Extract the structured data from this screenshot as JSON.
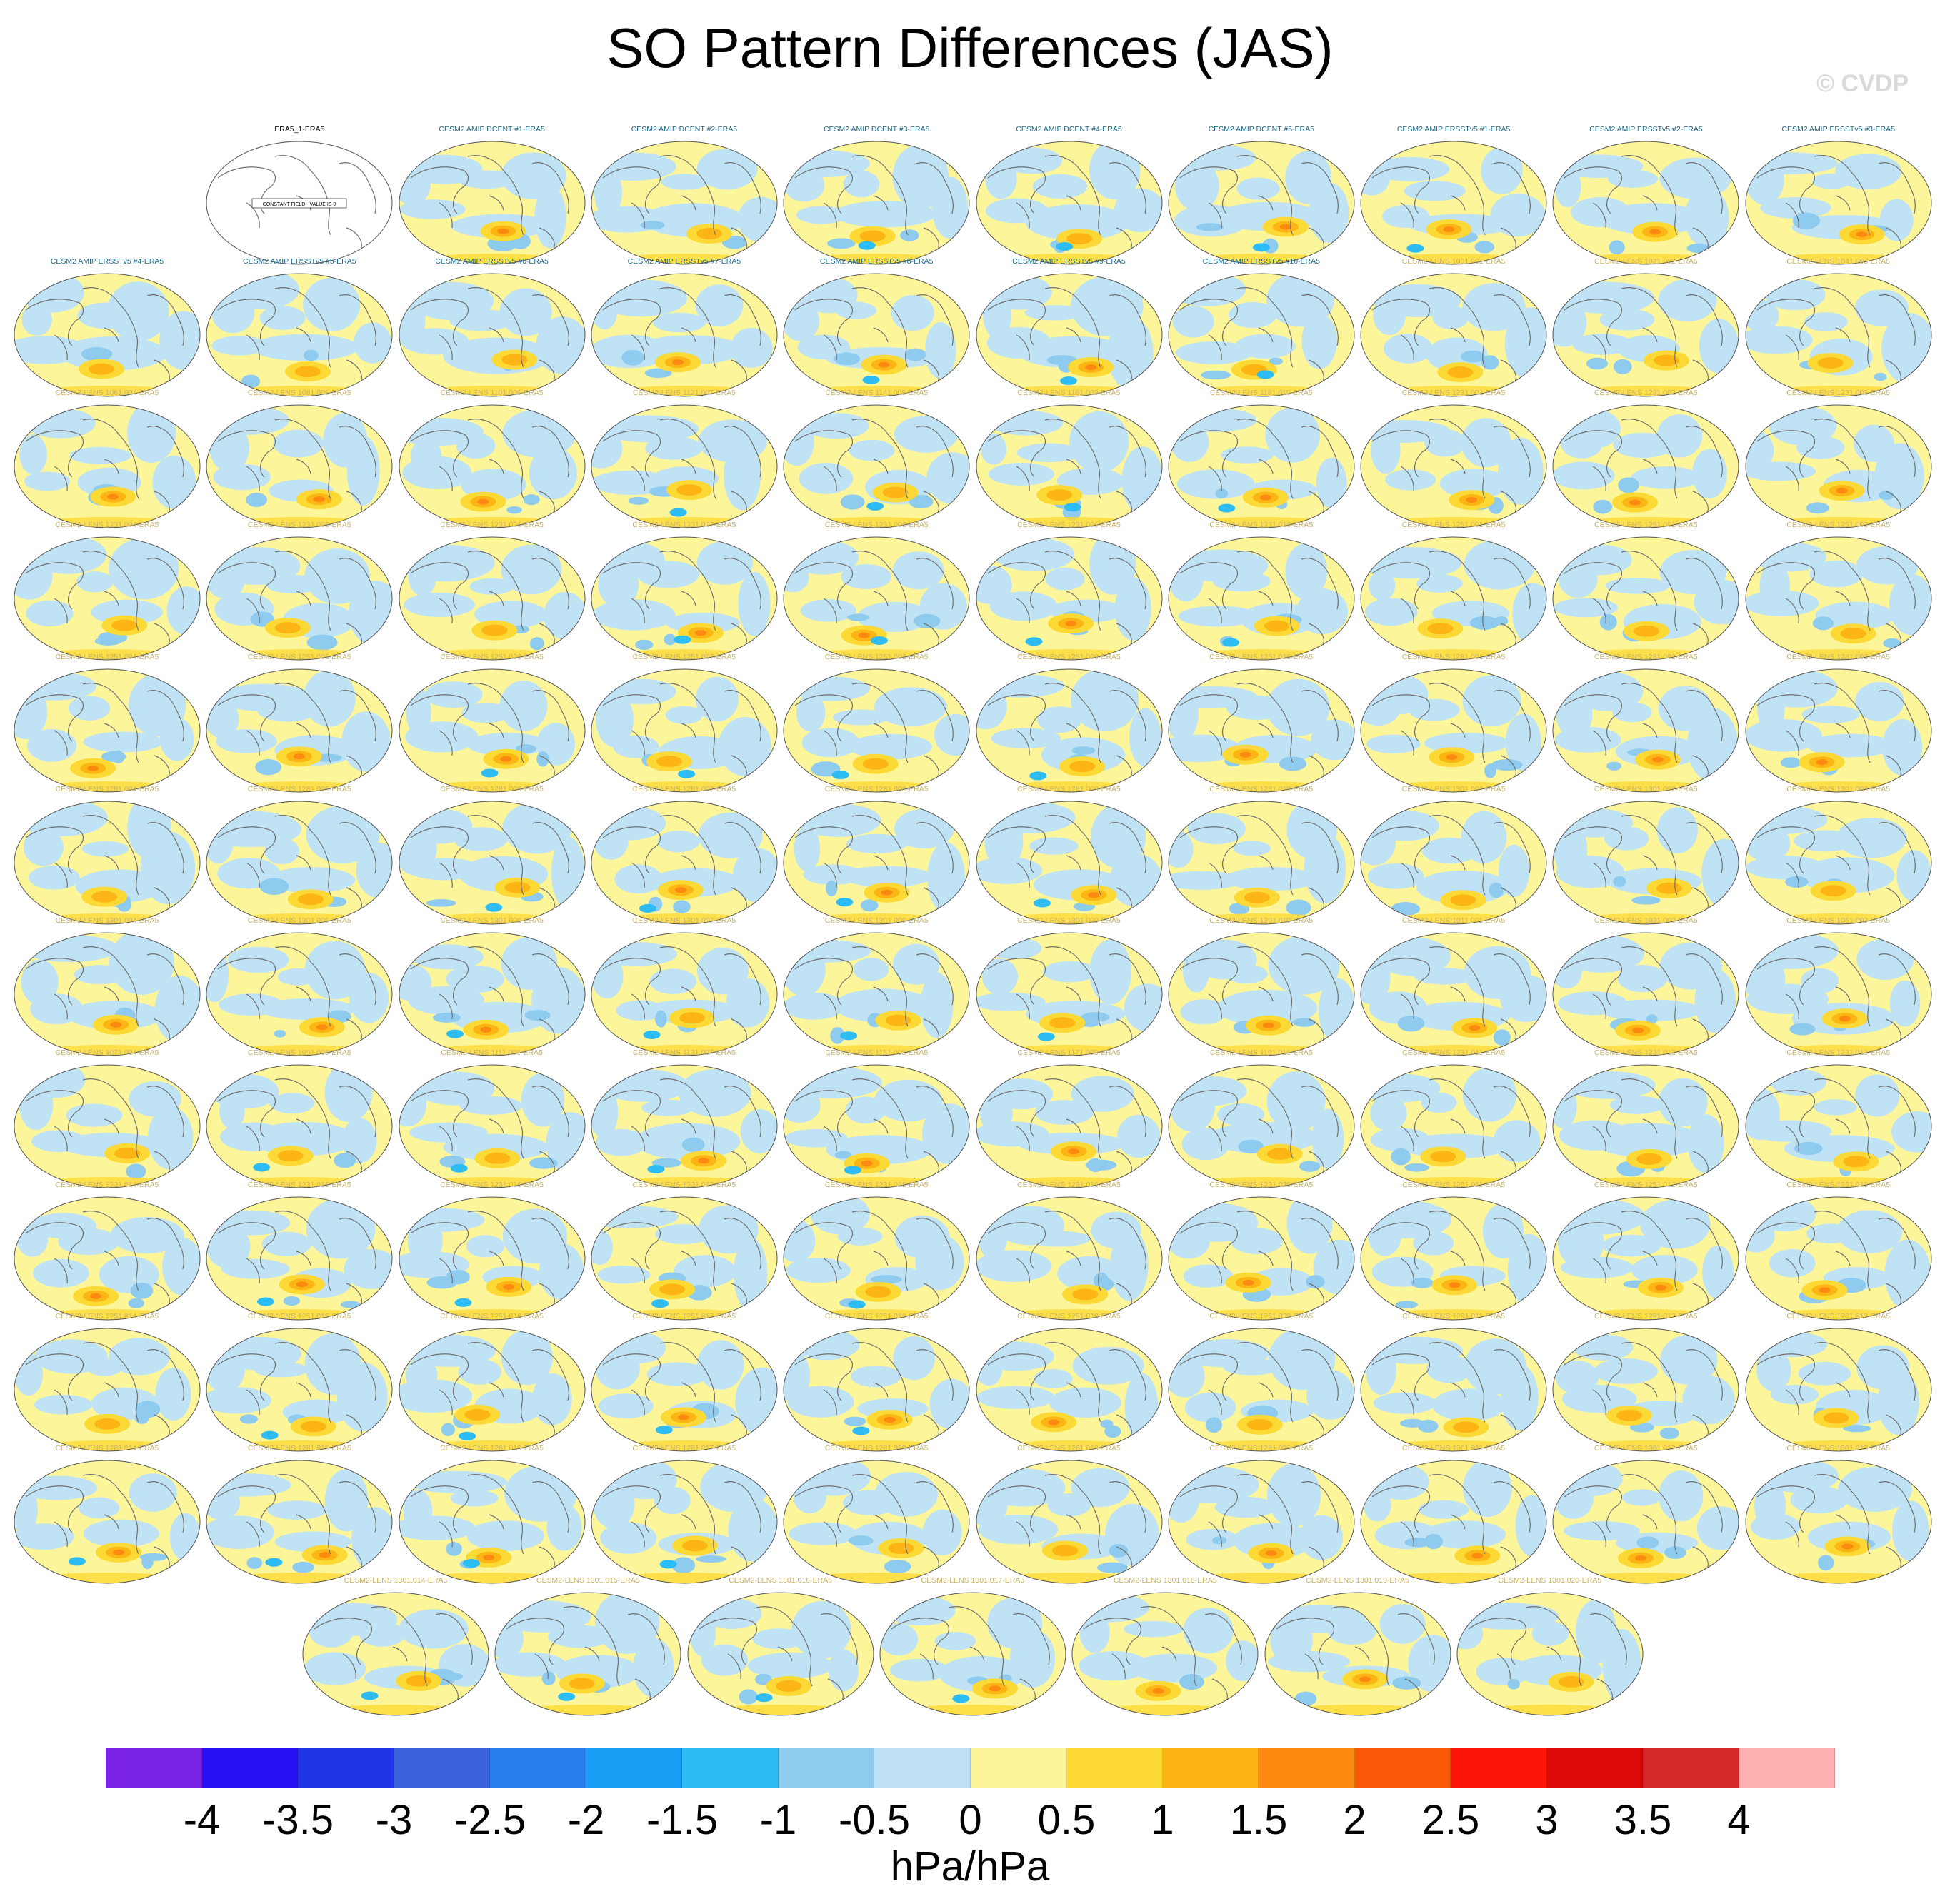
{
  "title": "SO Pattern Differences (JAS)",
  "watermark": "© CVDP",
  "chart_data": {
    "type": "map-panel-grid",
    "title": "SO Pattern Differences (JAS)",
    "colorbar": {
      "ticks": [
        "-4",
        "-3.5",
        "-3",
        "-2.5",
        "-2",
        "-1.5",
        "-1",
        "-0.5",
        "0",
        "0.5",
        "1",
        "1.5",
        "2",
        "2.5",
        "3",
        "3.5",
        "4"
      ],
      "colors": [
        "#7a22e8",
        "#2a10f5",
        "#1f35e6",
        "#3a62db",
        "#2a7eee",
        "#179ff5",
        "#2ebcf5",
        "#8ecbef",
        "#bfe3f5",
        "#fdf59a",
        "#fcd935",
        "#fcb514",
        "#fd8a10",
        "#fa5a08",
        "#fa1508",
        "#dd0808",
        "#d22828",
        "#ffb0b0"
      ],
      "unit_label": "hPa/hPa"
    },
    "panels": [
      {
        "title": "ERA5_1-ERA5",
        "constant_field_note": "CONSTANT FIELD - VALUE IS 0"
      },
      {
        "title": "CESM2 AMIP DCENT #1-ERA5"
      },
      {
        "title": "CESM2 AMIP DCENT #2-ERA5"
      },
      {
        "title": "CESM2 AMIP DCENT #3-ERA5"
      },
      {
        "title": "CESM2 AMIP DCENT #4-ERA5"
      },
      {
        "title": "CESM2 AMIP DCENT #5-ERA5"
      },
      {
        "title": "CESM2 AMIP ERSSTv5 #1-ERA5"
      },
      {
        "title": "CESM2 AMIP ERSSTv5 #2-ERA5"
      },
      {
        "title": "CESM2 AMIP ERSSTv5 #3-ERA5"
      },
      {
        "title": "CESM2 AMIP ERSSTv5 #4-ERA5"
      },
      {
        "title": "CESM2 AMIP ERSSTv5 #5-ERA5"
      },
      {
        "title": "CESM2 AMIP ERSSTv5 #6-ERA5"
      },
      {
        "title": "CESM2 AMIP ERSSTv5 #7-ERA5"
      },
      {
        "title": "CESM2 AMIP ERSSTv5 #8-ERA5"
      },
      {
        "title": "CESM2 AMIP ERSSTv5 #9-ERA5"
      },
      {
        "title": "CESM2 AMIP ERSSTv5 #10-ERA5"
      },
      {
        "title": "CESM2-LENS 1001.001-ERA5"
      },
      {
        "title": "CESM2-LENS 1021.002-ERA5"
      },
      {
        "title": "CESM2-LENS 1041.003-ERA5"
      },
      {
        "title": "CESM2-LENS 1061.004-ERA5"
      },
      {
        "title": "CESM2-LENS 1081.005-ERA5"
      },
      {
        "title": "CESM2-LENS 1101.006-ERA5"
      },
      {
        "title": "CESM2-LENS 1121.007-ERA5"
      },
      {
        "title": "CESM2-LENS 1141.008-ERA5"
      },
      {
        "title": "CESM2-LENS 1161.009-ERA5"
      },
      {
        "title": "CESM2-LENS 1181.010-ERA5"
      },
      {
        "title": "CESM2-LENS 1231.001-ERA5"
      },
      {
        "title": "CESM2-LENS 1231.002-ERA5"
      },
      {
        "title": "CESM2-LENS 1231.003-ERA5"
      },
      {
        "title": "CESM2-LENS 1231.004-ERA5"
      },
      {
        "title": "CESM2-LENS 1231.005-ERA5"
      },
      {
        "title": "CESM2-LENS 1231.006-ERA5"
      },
      {
        "title": "CESM2-LENS 1231.007-ERA5"
      },
      {
        "title": "CESM2-LENS 1231.008-ERA5"
      },
      {
        "title": "CESM2-LENS 1231.009-ERA5"
      },
      {
        "title": "CESM2-LENS 1231.010-ERA5"
      },
      {
        "title": "CESM2-LENS 1251.001-ERA5"
      },
      {
        "title": "CESM2-LENS 1251.002-ERA5"
      },
      {
        "title": "CESM2-LENS 1251.003-ERA5"
      },
      {
        "title": "CESM2-LENS 1251.004-ERA5"
      },
      {
        "title": "CESM2-LENS 1251.005-ERA5"
      },
      {
        "title": "CESM2-LENS 1251.006-ERA5"
      },
      {
        "title": "CESM2-LENS 1251.007-ERA5"
      },
      {
        "title": "CESM2-LENS 1251.008-ERA5"
      },
      {
        "title": "CESM2-LENS 1251.009-ERA5"
      },
      {
        "title": "CESM2-LENS 1251.010-ERA5"
      },
      {
        "title": "CESM2-LENS 1281.001-ERA5"
      },
      {
        "title": "CESM2-LENS 1281.002-ERA5"
      },
      {
        "title": "CESM2-LENS 1281.003-ERA5"
      },
      {
        "title": "CESM2-LENS 1281.004-ERA5"
      },
      {
        "title": "CESM2-LENS 1281.005-ERA5"
      },
      {
        "title": "CESM2-LENS 1281.006-ERA5"
      },
      {
        "title": "CESM2-LENS 1281.007-ERA5"
      },
      {
        "title": "CESM2-LENS 1281.008-ERA5"
      },
      {
        "title": "CESM2-LENS 1281.009-ERA5"
      },
      {
        "title": "CESM2-LENS 1281.010-ERA5"
      },
      {
        "title": "CESM2-LENS 1301.001-ERA5"
      },
      {
        "title": "CESM2-LENS 1301.002-ERA5"
      },
      {
        "title": "CESM2-LENS 1301.003-ERA5"
      },
      {
        "title": "CESM2-LENS 1301.004-ERA5"
      },
      {
        "title": "CESM2-LENS 1301.005-ERA5"
      },
      {
        "title": "CESM2-LENS 1301.006-ERA5"
      },
      {
        "title": "CESM2-LENS 1301.007-ERA5"
      },
      {
        "title": "CESM2-LENS 1301.008-ERA5"
      },
      {
        "title": "CESM2-LENS 1301.009-ERA5"
      },
      {
        "title": "CESM2-LENS 1301.010-ERA5"
      },
      {
        "title": "CESM2-LENS 1011.001-ERA5"
      },
      {
        "title": "CESM2-LENS 1031.002-ERA5"
      },
      {
        "title": "CESM2-LENS 1051.003-ERA5"
      },
      {
        "title": "CESM2-LENS 1071.004-ERA5"
      },
      {
        "title": "CESM2-LENS 1091.005-ERA5"
      },
      {
        "title": "CESM2-LENS 1111.006-ERA5"
      },
      {
        "title": "CESM2-LENS 1131.007-ERA5"
      },
      {
        "title": "CESM2-LENS 1151.008-ERA5"
      },
      {
        "title": "CESM2-LENS 1171.009-ERA5"
      },
      {
        "title": "CESM2-LENS 1191.010-ERA5"
      },
      {
        "title": "CESM2-LENS 1231.011-ERA5"
      },
      {
        "title": "CESM2-LENS 1231.012-ERA5"
      },
      {
        "title": "CESM2-LENS 1231.013-ERA5"
      },
      {
        "title": "CESM2-LENS 1231.014-ERA5"
      },
      {
        "title": "CESM2-LENS 1231.015-ERA5"
      },
      {
        "title": "CESM2-LENS 1231.016-ERA5"
      },
      {
        "title": "CESM2-LENS 1231.017-ERA5"
      },
      {
        "title": "CESM2-LENS 1231.018-ERA5"
      },
      {
        "title": "CESM2-LENS 1231.019-ERA5"
      },
      {
        "title": "CESM2-LENS 1231.020-ERA5"
      },
      {
        "title": "CESM2-LENS 1251.011-ERA5"
      },
      {
        "title": "CESM2-LENS 1251.012-ERA5"
      },
      {
        "title": "CESM2-LENS 1251.013-ERA5"
      },
      {
        "title": "CESM2-LENS 1251.014-ERA5"
      },
      {
        "title": "CESM2-LENS 1251.015-ERA5"
      },
      {
        "title": "CESM2-LENS 1251.016-ERA5"
      },
      {
        "title": "CESM2-LENS 1251.017-ERA5"
      },
      {
        "title": "CESM2-LENS 1251.018-ERA5"
      },
      {
        "title": "CESM2-LENS 1251.019-ERA5"
      },
      {
        "title": "CESM2-LENS 1251.020-ERA5"
      },
      {
        "title": "CESM2-LENS 1281.011-ERA5"
      },
      {
        "title": "CESM2-LENS 1281.012-ERA5"
      },
      {
        "title": "CESM2-LENS 1281.013-ERA5"
      },
      {
        "title": "CESM2-LENS 1281.014-ERA5"
      },
      {
        "title": "CESM2-LENS 1281.015-ERA5"
      },
      {
        "title": "CESM2-LENS 1281.016-ERA5"
      },
      {
        "title": "CESM2-LENS 1281.017-ERA5"
      },
      {
        "title": "CESM2-LENS 1281.018-ERA5"
      },
      {
        "title": "CESM2-LENS 1281.019-ERA5"
      },
      {
        "title": "CESM2-LENS 1281.020-ERA5"
      },
      {
        "title": "CESM2-LENS 1301.011-ERA5"
      },
      {
        "title": "CESM2-LENS 1301.012-ERA5"
      },
      {
        "title": "CESM2-LENS 1301.013-ERA5"
      },
      {
        "title": "CESM2-LENS 1301.014-ERA5"
      },
      {
        "title": "CESM2-LENS 1301.015-ERA5"
      },
      {
        "title": "CESM2-LENS 1301.016-ERA5"
      },
      {
        "title": "CESM2-LENS 1301.017-ERA5"
      },
      {
        "title": "CESM2-LENS 1301.018-ERA5"
      },
      {
        "title": "CESM2-LENS 1301.019-ERA5"
      },
      {
        "title": "CESM2-LENS 1301.020-ERA5"
      }
    ],
    "title_colors": {
      "observations": "#000000",
      "amip": "#1c6b8a",
      "lens": "#c8b36a"
    },
    "fill_colors": {
      "positive_weak": "#fdf59a",
      "positive_mid": "#fcd935",
      "positive_strong": "#fcb514",
      "positive_peak": "#fd8a10",
      "negative_weak": "#bfe3f5",
      "negative_mid": "#8ecbef",
      "negative_strong": "#2ebcf5",
      "coastline": "#707070"
    }
  }
}
